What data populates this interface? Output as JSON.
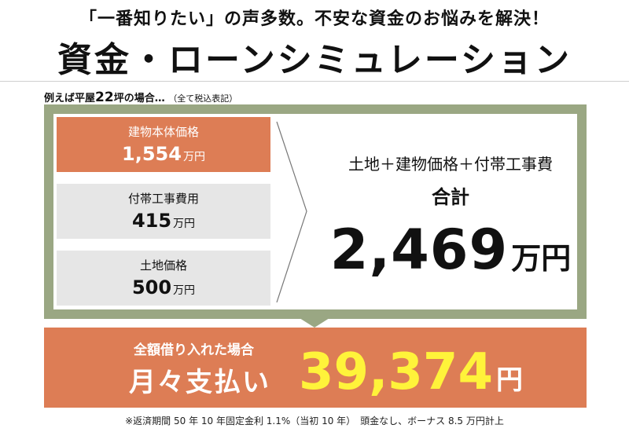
{
  "header": {
    "subtitle": "「一番知りたい」の声多数。不安な資金のお悩みを解決！",
    "title": "資金・ローンシミュレーション"
  },
  "example": {
    "prefix": "例えば平屋",
    "size": "22",
    "suffix": "坪の場合…",
    "note": "（全て税込表記）"
  },
  "costs": [
    {
      "label": "建物本体価格",
      "value": "1,554",
      "unit": "万円",
      "highlight": true
    },
    {
      "label": "付帯工事費用",
      "value": "415",
      "unit": "万円",
      "highlight": false
    },
    {
      "label": "土地価格",
      "value": "500",
      "unit": "万円",
      "highlight": false
    }
  ],
  "total": {
    "formula": "土地＋建物価格＋付帯工事費",
    "label": "合計",
    "value": "2,469",
    "unit": "万円"
  },
  "monthly": {
    "caption": "全額借り入れた場合",
    "label": "月々支払い",
    "value": "39,374",
    "unit": "円"
  },
  "footnote": "※返済期間 50 年 10 年固定金利 1.1%（当初 10 年）　頭金なし、ボーナス 8.5 万円計上",
  "colors": {
    "accent": "#dd7d55",
    "frame": "#9aa783",
    "cell": "#e6e6e6",
    "highlight_number": "#fff33a"
  }
}
